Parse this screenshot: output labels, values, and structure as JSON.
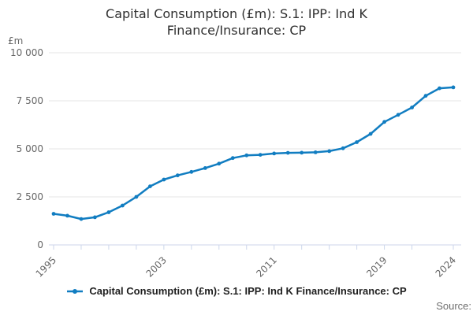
{
  "title": {
    "line1": "Capital Consumption (£m): S.1: IPP: Ind K",
    "line2": "Finance/Insurance: CP"
  },
  "y_axis_unit": "£m",
  "legend": {
    "label": "Capital Consumption (£m): S.1: IPP: Ind K Finance/Insurance: CP"
  },
  "source_label": "Source:",
  "chart_data": {
    "type": "line",
    "title": "Capital Consumption (£m): S.1: IPP: Ind K Finance/Insurance: CP",
    "series_name": "Capital Consumption (£m): S.1: IPP: Ind K Finance/Insurance: CP",
    "xlabel": "",
    "ylabel": "£m",
    "x": [
      1995,
      1996,
      1997,
      1998,
      1999,
      2000,
      2001,
      2002,
      2003,
      2004,
      2005,
      2006,
      2007,
      2008,
      2009,
      2010,
      2011,
      2012,
      2013,
      2014,
      2015,
      2016,
      2017,
      2018,
      2019,
      2020,
      2021,
      2022,
      2023,
      2024
    ],
    "values": [
      1620,
      1520,
      1350,
      1440,
      1700,
      2050,
      2500,
      3050,
      3400,
      3620,
      3800,
      4000,
      4230,
      4520,
      4660,
      4690,
      4760,
      4790,
      4800,
      4820,
      4880,
      5030,
      5350,
      5780,
      6400,
      6770,
      7150,
      7760,
      8150,
      8200
    ],
    "ylim": [
      0,
      10000
    ],
    "xlim": [
      1995,
      2024
    ],
    "y_ticks": [
      0,
      2500,
      5000,
      7500,
      10000
    ],
    "y_tick_labels": [
      "0",
      "2 500",
      "5 000",
      "7 500",
      "10 000"
    ],
    "x_tick_years": [
      1995,
      1997,
      1999,
      2001,
      2003,
      2005,
      2007,
      2009,
      2011,
      2013,
      2015,
      2017,
      2019,
      2021,
      2024
    ],
    "x_labeled_ticks": [
      1995,
      2003,
      2011,
      2019,
      2024
    ],
    "grid": true,
    "legend_position": "bottom",
    "marker": "circle",
    "colors": {
      "line": "#117dc1",
      "grid": "#e6e6e6",
      "axis": "#ccd6eb",
      "tick_label": "#666666",
      "title": "#2f2f2f"
    }
  }
}
